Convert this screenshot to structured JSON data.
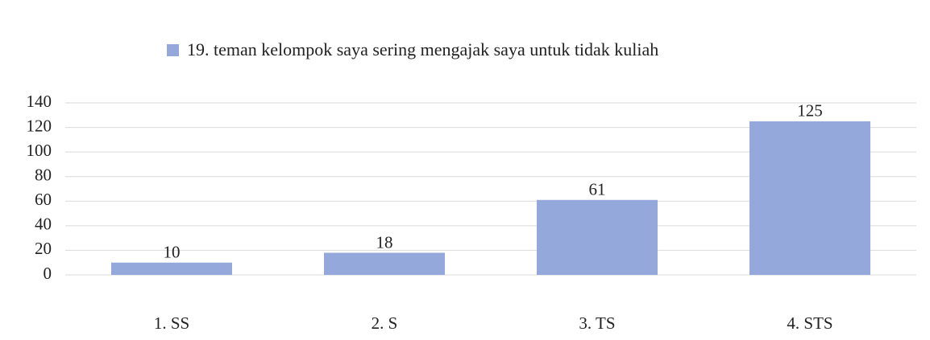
{
  "chart_data": {
    "type": "bar",
    "categories": [
      "1. SS",
      "2. S",
      "3. TS",
      "4. STS"
    ],
    "series": [
      {
        "name": "19. teman kelompok saya sering mengajak saya untuk tidak kuliah",
        "color": "#94a8dc",
        "values": [
          10,
          18,
          61,
          125
        ]
      }
    ],
    "ylim": [
      0,
      140
    ],
    "yticks": [
      0,
      20,
      40,
      60,
      80,
      100,
      120,
      140
    ],
    "grid": true,
    "legend": "top"
  }
}
